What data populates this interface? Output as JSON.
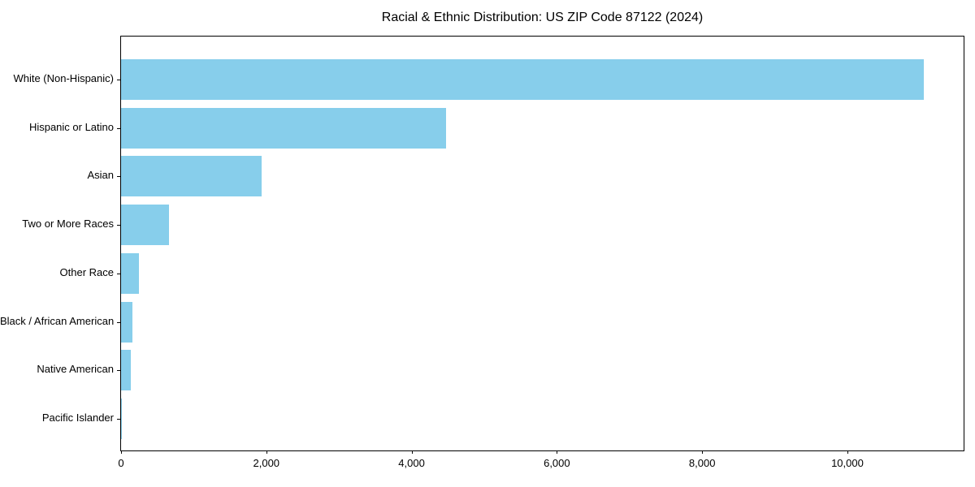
{
  "chart_data": {
    "type": "bar",
    "orientation": "horizontal",
    "title": "Racial & Ethnic Distribution: US ZIP Code 87122 (2024)",
    "categories": [
      "White (Non-Hispanic)",
      "Hispanic or Latino",
      "Asian",
      "Two or More Races",
      "Other Race",
      "Black / African American",
      "Native American",
      "Pacific Islander"
    ],
    "values": [
      11050,
      4470,
      1930,
      660,
      245,
      155,
      135,
      10
    ],
    "xlabel": "",
    "ylabel": "",
    "xlim": [
      0,
      11600
    ],
    "xticks": [
      0,
      2000,
      4000,
      6000,
      8000,
      10000
    ],
    "xtick_labels": [
      "0",
      "2,000",
      "4,000",
      "6,000",
      "8,000",
      "10,000"
    ],
    "bar_color": "#87CEEB",
    "axis_color": "#000000",
    "grid": false,
    "legend": null
  }
}
